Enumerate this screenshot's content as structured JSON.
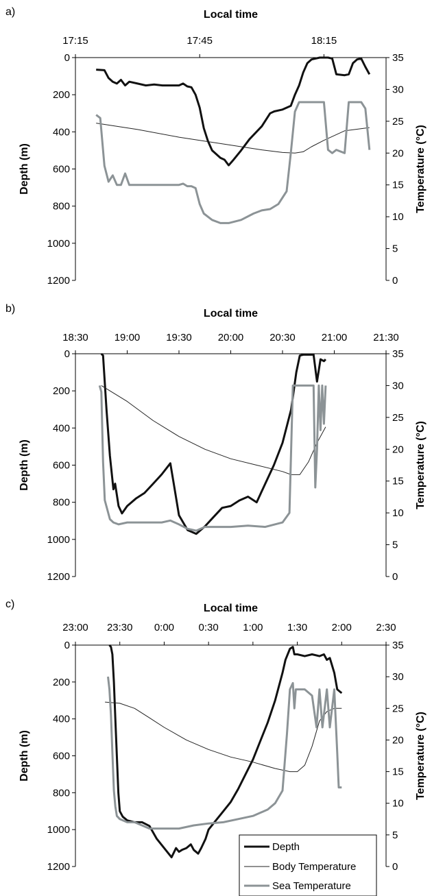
{
  "colors": {
    "depth": "#111111",
    "body_temperature": "#222222",
    "sea_temperature": "#8c9396",
    "axis": "#000000"
  },
  "legend": {
    "position": "bottom-right",
    "items": [
      {
        "label": "Depth",
        "key": "depth"
      },
      {
        "label": "Body Temperature",
        "key": "body_temperature"
      },
      {
        "label": "Sea Temperature",
        "key": "sea_temperature"
      }
    ]
  },
  "chart_data": [
    {
      "type": "line",
      "panel_label": "a)",
      "xlabel": "Local time",
      "ylabel_left": "Depth (m)",
      "ylabel_right": "Temperature (°C)",
      "x_ticks": [
        "17:15",
        "17:45",
        "18:15"
      ],
      "y_left_ticks": [
        "0",
        "200",
        "400",
        "600",
        "800",
        "1000",
        "1200"
      ],
      "y_right_ticks": [
        "0",
        "5",
        "10",
        "15",
        "20",
        "25",
        "30",
        "35"
      ],
      "series": [
        {
          "key": "depth",
          "axis": "left",
          "x": [
            "17:20",
            "17:22",
            "17:23",
            "17:24",
            "17:25",
            "17:26",
            "17:27",
            "17:28",
            "17:30",
            "17:32",
            "17:34",
            "17:36",
            "17:38",
            "17:40",
            "17:41",
            "17:42",
            "17:43",
            "17:44",
            "17:45",
            "17:46",
            "17:47",
            "17:48",
            "17:50",
            "17:51",
            "17:52",
            "17:53",
            "17:55",
            "17:57",
            "18:00",
            "18:02",
            "18:03",
            "18:05",
            "18:07",
            "18:08",
            "18:09",
            "18:10",
            "18:11",
            "18:12",
            "18:14",
            "18:16",
            "18:17",
            "18:18",
            "18:20",
            "18:21",
            "18:22",
            "18:23",
            "18:24",
            "18:25",
            "18:26"
          ],
          "y": [
            65,
            68,
            110,
            130,
            140,
            120,
            150,
            130,
            140,
            150,
            145,
            150,
            150,
            150,
            140,
            155,
            160,
            200,
            270,
            380,
            450,
            500,
            540,
            550,
            580,
            555,
            500,
            440,
            370,
            300,
            290,
            280,
            260,
            200,
            150,
            80,
            30,
            10,
            0,
            0,
            5,
            90,
            95,
            90,
            30,
            10,
            5,
            50,
            90
          ]
        },
        {
          "key": "body_temperature",
          "axis": "right",
          "x": [
            "17:20",
            "17:30",
            "17:40",
            "17:50",
            "18:00",
            "18:05",
            "18:08",
            "18:10",
            "18:12",
            "18:15",
            "18:20",
            "18:26"
          ],
          "y": [
            24.7,
            23.7,
            22.5,
            21.5,
            20.5,
            20.1,
            20.0,
            20.2,
            21.0,
            22.0,
            23.5,
            24.0
          ]
        },
        {
          "key": "sea_temperature",
          "axis": "right",
          "x": [
            "17:20",
            "17:21",
            "17:22",
            "17:23",
            "17:24",
            "17:25",
            "17:26",
            "17:27",
            "17:28",
            "17:30",
            "17:35",
            "17:40",
            "17:41",
            "17:42",
            "17:43",
            "17:44",
            "17:45",
            "17:46",
            "17:48",
            "17:50",
            "17:52",
            "17:55",
            "17:58",
            "18:00",
            "18:02",
            "18:04",
            "18:06",
            "18:07",
            "18:08",
            "18:09",
            "18:10",
            "18:12",
            "18:14",
            "18:15",
            "18:16",
            "18:17",
            "18:18",
            "18:20",
            "18:21",
            "18:22",
            "18:23",
            "18:24",
            "18:25",
            "18:26"
          ],
          "y": [
            26.0,
            25.5,
            18.0,
            15.5,
            16.5,
            15.0,
            15.0,
            16.8,
            15.0,
            15.0,
            15.0,
            15.0,
            15.2,
            14.8,
            14.8,
            14.5,
            12.0,
            10.5,
            9.5,
            9.0,
            9.0,
            9.5,
            10.5,
            11.0,
            11.2,
            12.0,
            14.0,
            20.0,
            26.5,
            28.0,
            28.0,
            28.0,
            28.0,
            28.0,
            20.5,
            20.0,
            20.5,
            20.0,
            28.0,
            28.0,
            28.0,
            28.0,
            27.0,
            20.5
          ]
        }
      ]
    },
    {
      "type": "line",
      "panel_label": "b)",
      "xlabel": "Local time",
      "ylabel_left": "Depth (m)",
      "ylabel_right": "Temperature (°C)",
      "x_ticks": [
        "18:30",
        "19:00",
        "19:30",
        "20:00",
        "20:30",
        "21:00",
        "21:30"
      ],
      "y_left_ticks": [
        "0",
        "200",
        "400",
        "600",
        "800",
        "1000",
        "1200"
      ],
      "y_right_ticks": [
        "0",
        "5",
        "10",
        "15",
        "20",
        "25",
        "30",
        "35"
      ],
      "series": [
        {
          "key": "depth",
          "axis": "left",
          "x": [
            "18:45",
            "18:46",
            "18:48",
            "18:50",
            "18:52",
            "18:53",
            "18:55",
            "18:57",
            "19:00",
            "19:05",
            "19:10",
            "19:15",
            "19:20",
            "19:25",
            "19:27",
            "19:30",
            "19:35",
            "19:40",
            "19:45",
            "19:50",
            "19:55",
            "20:00",
            "20:05",
            "20:10",
            "20:15",
            "20:20",
            "20:25",
            "20:30",
            "20:35",
            "20:38",
            "20:40",
            "20:42",
            "20:45",
            "20:48",
            "20:50",
            "20:52",
            "20:54",
            "20:55"
          ],
          "y": [
            0,
            10,
            300,
            550,
            730,
            700,
            820,
            860,
            820,
            780,
            750,
            700,
            650,
            590,
            700,
            870,
            950,
            970,
            930,
            880,
            830,
            820,
            790,
            770,
            800,
            700,
            600,
            480,
            300,
            100,
            10,
            5,
            5,
            5,
            150,
            30,
            40,
            30
          ]
        },
        {
          "key": "body_temperature",
          "axis": "right",
          "x": [
            "18:45",
            "19:00",
            "19:15",
            "19:30",
            "19:45",
            "20:00",
            "20:15",
            "20:30",
            "20:35",
            "20:40",
            "20:45",
            "20:50",
            "20:55"
          ],
          "y": [
            30.0,
            27.5,
            24.5,
            22.0,
            20.0,
            18.5,
            17.5,
            16.5,
            16.0,
            16.0,
            18.0,
            21.0,
            23.5
          ]
        },
        {
          "key": "sea_temperature",
          "axis": "right",
          "x": [
            "18:44",
            "18:45",
            "18:46",
            "18:47",
            "18:50",
            "18:52",
            "18:55",
            "19:00",
            "19:10",
            "19:20",
            "19:25",
            "19:30",
            "19:35",
            "19:40",
            "19:45",
            "19:50",
            "20:00",
            "20:10",
            "20:20",
            "20:30",
            "20:34",
            "20:35",
            "20:36",
            "20:40",
            "20:45",
            "20:48",
            "20:49",
            "20:50",
            "20:51",
            "20:52",
            "20:53",
            "20:54",
            "20:55"
          ],
          "y": [
            30.0,
            29.0,
            18.0,
            12.0,
            9.0,
            8.5,
            8.2,
            8.5,
            8.5,
            8.5,
            8.8,
            8.2,
            7.5,
            7.2,
            7.8,
            7.8,
            7.8,
            8.0,
            7.8,
            8.5,
            10.0,
            20.0,
            30.0,
            30.0,
            30.0,
            30.0,
            14.0,
            20.0,
            30.0,
            23.0,
            30.0,
            24.0,
            30.0
          ]
        }
      ]
    },
    {
      "type": "line",
      "panel_label": "c)",
      "xlabel": "Local time",
      "ylabel_left": "Depth (m)",
      "ylabel_right": "Temperature (°C)",
      "x_ticks": [
        "23:00",
        "23:30",
        "0:00",
        "0:30",
        "1:00",
        "1:30",
        "2:00",
        "2:30"
      ],
      "y_left_ticks": [
        "0",
        "200",
        "400",
        "600",
        "800",
        "1000",
        "1200"
      ],
      "y_right_ticks": [
        "0",
        "5",
        "10",
        "15",
        "20",
        "25",
        "30",
        "35"
      ],
      "series": [
        {
          "key": "depth",
          "axis": "left",
          "x": [
            "23:23",
            "23:24",
            "23:25",
            "23:26",
            "23:27",
            "23:28",
            "23:29",
            "23:30",
            "23:32",
            "23:35",
            "23:40",
            "23:45",
            "23:50",
            "23:55",
            "0:00",
            "0:03",
            "0:05",
            "0:08",
            "0:10",
            "0:12",
            "0:15",
            "0:18",
            "0:20",
            "0:23",
            "0:25",
            "0:28",
            "0:30",
            "0:35",
            "0:40",
            "0:45",
            "0:50",
            "0:55",
            "1:00",
            "1:05",
            "1:10",
            "1:15",
            "1:20",
            "1:22",
            "1:25",
            "1:27",
            "1:28",
            "1:30",
            "1:35",
            "1:40",
            "1:45",
            "1:48",
            "1:50",
            "1:52",
            "1:55",
            "1:57",
            "2:00"
          ],
          "y": [
            0,
            10,
            50,
            200,
            400,
            600,
            800,
            900,
            930,
            950,
            960,
            960,
            980,
            1050,
            1100,
            1130,
            1150,
            1100,
            1120,
            1110,
            1100,
            1080,
            1110,
            1130,
            1100,
            1050,
            1000,
            950,
            900,
            850,
            780,
            700,
            620,
            520,
            420,
            300,
            150,
            80,
            20,
            10,
            50,
            50,
            60,
            50,
            60,
            50,
            80,
            70,
            150,
            240,
            260
          ]
        },
        {
          "key": "body_temperature",
          "axis": "right",
          "x": [
            "23:20",
            "23:30",
            "23:40",
            "23:50",
            "0:00",
            "0:15",
            "0:30",
            "0:45",
            "1:00",
            "1:15",
            "1:25",
            "1:30",
            "1:35",
            "1:40",
            "1:45",
            "1:50",
            "1:55",
            "2:00"
          ],
          "y": [
            26.0,
            25.8,
            25.0,
            23.5,
            22.0,
            20.0,
            18.5,
            17.3,
            16.5,
            15.5,
            15.0,
            15.0,
            16.0,
            19.0,
            23.0,
            24.5,
            25.0,
            25.0
          ]
        },
        {
          "key": "sea_temperature",
          "axis": "right",
          "x": [
            "23:22",
            "23:23",
            "23:24",
            "23:25",
            "23:26",
            "23:27",
            "23:28",
            "23:30",
            "23:35",
            "23:40",
            "23:45",
            "23:50",
            "0:00",
            "0:10",
            "0:20",
            "0:30",
            "0:40",
            "0:50",
            "1:00",
            "1:10",
            "1:15",
            "1:20",
            "1:23",
            "1:25",
            "1:27",
            "1:28",
            "1:29",
            "1:30",
            "1:35",
            "1:40",
            "1:43",
            "1:45",
            "1:47",
            "1:50",
            "1:52",
            "1:55",
            "1:57",
            "1:58",
            "2:00"
          ],
          "y": [
            30.0,
            28.0,
            24.0,
            18.0,
            12.0,
            9.5,
            8.0,
            7.5,
            7.0,
            7.0,
            6.5,
            6.0,
            6.0,
            6.0,
            6.5,
            6.8,
            7.0,
            7.5,
            8.0,
            9.0,
            10.0,
            12.0,
            21.0,
            28.0,
            29.0,
            25.0,
            28.0,
            28.0,
            28.0,
            27.0,
            22.0,
            28.0,
            22.0,
            28.0,
            22.0,
            28.0,
            18.0,
            12.5,
            12.5
          ]
        }
      ]
    }
  ]
}
